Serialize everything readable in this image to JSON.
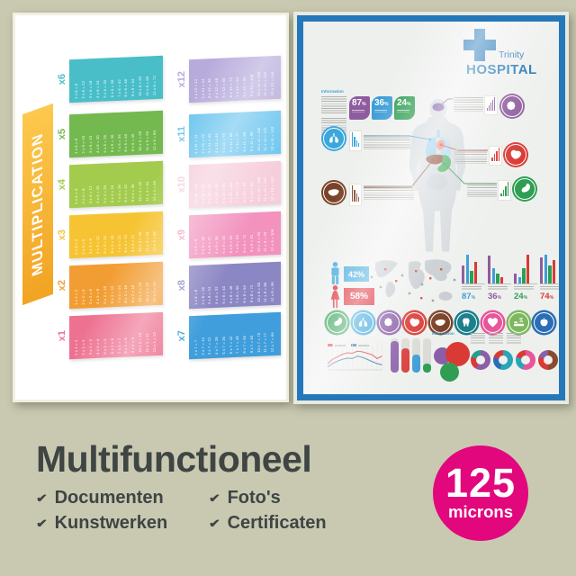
{
  "headline": {
    "title": "Multifunctioneel",
    "color": "#3e4543"
  },
  "check_glyph": "✔",
  "features": [
    {
      "label": "Documenten"
    },
    {
      "label": "Foto's"
    },
    {
      "label": "Kunstwerken"
    },
    {
      "label": "Certificaten"
    }
  ],
  "badge": {
    "value": "125",
    "unit": "microns",
    "color": "#e2077d"
  },
  "multiplication_poster": {
    "title": "MULTIPLICATION",
    "tables": [
      {
        "label": "x6",
        "color": "#49bec9",
        "rows": [
          "1 x 6 = 6",
          "2 x 6 = 12",
          "3 x 6 = 18",
          "4 x 6 = 24",
          "5 x 6 = 30",
          "6 x 6 = 36",
          "7 x 6 = 42",
          "8 x 6 = 48",
          "9 x 6 = 54",
          "10 x 6 = 60",
          "11 x 6 = 66",
          "12 x 6 = 72"
        ]
      },
      {
        "label": "x5",
        "color": "#74b94f",
        "rows": [
          "1 x 5 = 5",
          "2 x 5 = 10",
          "3 x 5 = 15",
          "4 x 5 = 20",
          "5 x 5 = 25",
          "6 x 5 = 30",
          "7 x 5 = 35",
          "8 x 5 = 40",
          "9 x 5 = 45",
          "10 x 5 = 50",
          "11 x 5 = 55",
          "12 x 5 = 60"
        ]
      },
      {
        "label": "x4",
        "color": "#a3cc4e",
        "rows": [
          "1 x 4 = 4",
          "2 x 4 = 8",
          "3 x 4 = 12",
          "4 x 4 = 16",
          "5 x 4 = 20",
          "6 x 4 = 24",
          "7 x 4 = 28",
          "8 x 4 = 32",
          "9 x 4 = 36",
          "10 x 4 = 40",
          "11 x 4 = 44",
          "12 x 4 = 48"
        ]
      },
      {
        "label": "x3",
        "color": "#f6c433",
        "rows": [
          "1 x 3 = 3",
          "2 x 3 = 6",
          "3 x 3 = 9",
          "4 x 3 = 12",
          "5 x 3 = 15",
          "6 x 3 = 18",
          "7 x 3 = 21",
          "8 x 3 = 24",
          "9 x 3 = 27",
          "10 x 3 = 30",
          "11 x 3 = 33",
          "12 x 3 = 36"
        ]
      },
      {
        "label": "x2",
        "color": "#f29d33",
        "rows": [
          "1 x 2 = 2",
          "2 x 2 = 4",
          "3 x 2 = 6",
          "4 x 2 = 8",
          "5 x 2 = 10",
          "6 x 2 = 12",
          "7 x 2 = 14",
          "8 x 2 = 16",
          "9 x 2 = 18",
          "10 x 2 = 20",
          "11 x 2 = 22",
          "12 x 2 = 24"
        ]
      },
      {
        "label": "x1",
        "color": "#ee7191",
        "rows": [
          "1 x 1 = 1",
          "2 x 1 = 2",
          "3 x 1 = 3",
          "4 x 1 = 4",
          "5 x 1 = 5",
          "6 x 1 = 6",
          "7 x 1 = 7",
          "8 x 1 = 8",
          "9 x 1 = 9",
          "10 x 1 = 10",
          "11 x 1 = 11",
          "12 x 1 = 12"
        ]
      },
      {
        "label": "x12",
        "color": "#b7abdc",
        "rows": [
          "1 x 12 = 12",
          "2 x 12 = 24",
          "3 x 12 = 36",
          "4 x 12 = 48",
          "5 x 12 = 60",
          "6 x 12 = 72",
          "7 x 12 = 84",
          "8 x 12 = 96",
          "9 x 12 = 108",
          "10 x 12 = 120",
          "11 x 12 = 132",
          "12 x 12 = 144"
        ]
      },
      {
        "label": "x11",
        "color": "#6ec6ef",
        "rows": [
          "1 x 11 = 11",
          "2 x 11 = 22",
          "3 x 11 = 33",
          "4 x 11 = 44",
          "5 x 11 = 55",
          "6 x 11 = 66",
          "7 x 11 = 77",
          "8 x 11 = 88",
          "9 x 11 = 99",
          "10 x 11 = 110",
          "11 x 11 = 121",
          "12 x 11 = 132"
        ]
      },
      {
        "label": "x10",
        "color": "#f6cedb",
        "rows": [
          "1 x 10 = 10",
          "2 x 10 = 20",
          "3 x 10 = 30",
          "4 x 10 = 40",
          "5 x 10 = 50",
          "6 x 10 = 60",
          "7 x 10 = 70",
          "8 x 10 = 80",
          "9 x 10 = 90",
          "10 x 10 = 100",
          "11 x 10 = 110",
          "12 x 10 = 120"
        ]
      },
      {
        "label": "x9",
        "color": "#f292bd",
        "rows": [
          "1 x 9 = 9",
          "2 x 9 = 18",
          "3 x 9 = 27",
          "4 x 9 = 36",
          "5 x 9 = 45",
          "6 x 9 = 54",
          "7 x 9 = 63",
          "8 x 9 = 72",
          "9 x 9 = 81",
          "10 x 9 = 90",
          "11 x 9 = 99",
          "12 x 9 = 108"
        ]
      },
      {
        "label": "x8",
        "color": "#8b86c4",
        "rows": [
          "1 x 8 = 8",
          "2 x 8 = 16",
          "3 x 8 = 24",
          "4 x 8 = 32",
          "5 x 8 = 40",
          "6 x 8 = 48",
          "7 x 8 = 56",
          "8 x 8 = 64",
          "9 x 8 = 72",
          "10 x 8 = 80",
          "11 x 8 = 88",
          "12 x 8 = 96"
        ]
      },
      {
        "label": "x7",
        "color": "#3f9edb",
        "rows": [
          "1 x 7 = 7",
          "2 x 7 = 14",
          "3 x 7 = 21",
          "4 x 7 = 28",
          "5 x 7 = 35",
          "6 x 7 = 42",
          "7 x 7 = 49",
          "8 x 7 = 56",
          "9 x 7 = 63",
          "10 x 7 = 70",
          "11 x 7 = 77",
          "12 x 7 = 84"
        ]
      }
    ]
  },
  "hospital_poster": {
    "frame_color": "#2478ba",
    "brand": {
      "line1": "Trinity",
      "line2": "HOSPITAL",
      "color": "#2176b5"
    },
    "info_heading": "Information",
    "stat_badges": [
      {
        "value": "87",
        "unit": "%",
        "color": "#8e5c9e"
      },
      {
        "value": "36",
        "unit": "%",
        "color": "#3e9ed6"
      },
      {
        "value": "24",
        "unit": "%",
        "color": "#2f9e53"
      }
    ],
    "callouts": [
      {
        "organ": "brain",
        "color": "#8e5c9e",
        "bars": [
          0.2,
          0.4,
          0.6,
          0.8,
          1.0
        ]
      },
      {
        "organ": "lungs",
        "color": "#3ba7dc",
        "bars": [
          1.0,
          0.7,
          0.45,
          0.25
        ]
      },
      {
        "organ": "heart-organ",
        "color": "#d93a35",
        "bars": [
          0.25,
          0.5,
          0.75,
          1.0
        ]
      },
      {
        "organ": "liver",
        "color": "#7a4228",
        "bars": [
          1.0,
          0.72,
          0.48,
          0.3
        ]
      },
      {
        "organ": "stomach",
        "color": "#2f9e53",
        "bars": [
          0.2,
          0.45,
          0.7,
          1.0
        ]
      }
    ],
    "gender": {
      "male_value": "42%",
      "male_color": "#3ba7dc",
      "female_value": "58%",
      "female_color": "#dd2430"
    },
    "region_stats": {
      "bar_colors": [
        "#8e5c9e",
        "#3e9ed6",
        "#2f9e53",
        "#d93a35"
      ],
      "groups": [
        {
          "label": "87",
          "unit": "%",
          "label_color": "#3e9ed6",
          "bars": [
            0.6,
            0.95,
            0.4,
            0.7
          ]
        },
        {
          "label": "36",
          "unit": "%",
          "label_color": "#8e5c9e",
          "bars": [
            0.9,
            0.5,
            0.33,
            0.2
          ]
        },
        {
          "label": "24",
          "unit": "%",
          "label_color": "#2f9e53",
          "bars": [
            0.33,
            0.22,
            0.5,
            0.95
          ]
        },
        {
          "label": "74",
          "unit": "%",
          "label_color": "#d93a35",
          "bars": [
            0.85,
            0.95,
            0.6,
            0.75
          ]
        }
      ]
    },
    "organ_badges": [
      {
        "icon": "stomach",
        "color": "#2f9e53"
      },
      {
        "icon": "lungs",
        "color": "#3ba7dc"
      },
      {
        "icon": "brain",
        "color": "#8a5fa8"
      },
      {
        "icon": "heart-organ",
        "color": "#d93a35"
      },
      {
        "icon": "liver",
        "color": "#7a4228"
      },
      {
        "icon": "tooth",
        "color": "#1b7f8c"
      },
      {
        "icon": "heart",
        "color": "#e8559a"
      },
      {
        "icon": "sleep",
        "color": "#7cb85c"
      },
      {
        "icon": "apple",
        "color": "#2a6db5"
      }
    ],
    "bottom_info_heading": "Information",
    "trend_chart": {
      "red_color": "#d93a35",
      "blue_color": "#3a6ea8",
      "red": [
        0.25,
        0.42,
        0.52,
        0.62,
        0.68,
        0.66,
        0.74,
        0.72,
        0.66,
        0.6,
        0.45,
        0.55
      ],
      "blue": [
        0.12,
        0.25,
        0.35,
        0.42,
        0.47,
        0.45,
        0.55,
        0.5,
        0.42,
        0.33,
        0.25,
        0.2
      ]
    },
    "progress_bars": {
      "values": [
        0.92,
        0.7,
        0.52,
        0.26
      ],
      "colors": [
        "#8a5fa8",
        "#d93a35",
        "#3e9ed6",
        "#2f9e53"
      ]
    },
    "venn_colors": [
      "#8a5fa8",
      "#d93a35",
      "#2f9e53"
    ],
    "donuts": [
      {
        "segments": [
          [
            "#8a5fa8",
            58
          ],
          [
            "#d93a35",
            22
          ],
          [
            "#2a9d8f",
            20
          ]
        ]
      },
      {
        "segments": [
          [
            "#29a5b8",
            55
          ],
          [
            "#2a6db5",
            25
          ],
          [
            "#d93a35",
            20
          ]
        ]
      },
      {
        "segments": [
          [
            "#e8559a",
            55
          ],
          [
            "#29a5b8",
            25
          ],
          [
            "#d93a35",
            20
          ]
        ]
      },
      {
        "segments": [
          [
            "#8a4a32",
            50
          ],
          [
            "#d93a35",
            30
          ],
          [
            "#8a5fa8",
            20
          ]
        ]
      }
    ]
  }
}
